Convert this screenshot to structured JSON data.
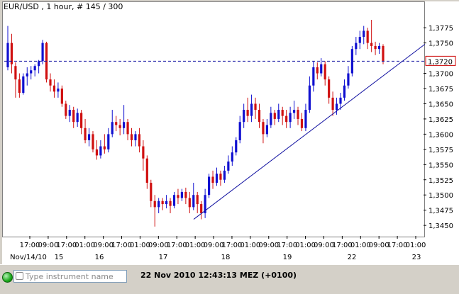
{
  "window": {
    "title": "EUR/USD , 1 hour, # 145 / 300"
  },
  "status_bar": {
    "instrument_placeholder": "Type instrument name",
    "timestamp": "22 Nov 2010 12:43:13 MEZ (+0100)",
    "connection_icon": "green-status-dot"
  },
  "colors": {
    "bull_candle": "#1010d0",
    "bear_candle": "#d01010",
    "trendline": "#1010a0",
    "price_line": "#1010a0",
    "price_label_border": "#cc0000"
  },
  "chart_data": {
    "type": "candlestick",
    "title": "EUR/USD , 1 hour, # 145 / 300",
    "current_price": 1.372,
    "current_price_label": "1,3720",
    "ylim": [
      1.3435,
      1.3795
    ],
    "y_ticks": [
      {
        "value": 1.3775,
        "label": "1,3775"
      },
      {
        "value": 1.375,
        "label": "1,3750"
      },
      {
        "value": 1.37,
        "label": "1,3700"
      },
      {
        "value": 1.3675,
        "label": "1,3675"
      },
      {
        "value": 1.365,
        "label": "1,3650"
      },
      {
        "value": 1.3625,
        "label": "1,3625"
      },
      {
        "value": 1.36,
        "label": "1,3600"
      },
      {
        "value": 1.3575,
        "label": "1,3575"
      },
      {
        "value": 1.355,
        "label": "1,3550"
      },
      {
        "value": 1.3525,
        "label": "1,3525"
      },
      {
        "value": 1.35,
        "label": "1,3500"
      },
      {
        "value": 1.3475,
        "label": "1,3475"
      },
      {
        "value": 1.345,
        "label": "1,3450"
      }
    ],
    "time_ticks": [
      "17:00",
      "09:00",
      "17:00",
      "01:00",
      "09:00",
      "17:00",
      "01:00",
      "09:00",
      "17:00",
      "01:00",
      "09:00",
      "17:00",
      "01:00",
      "09:00",
      "17:00",
      "01:00",
      "09:00",
      "17:00",
      "01:00",
      "09:00",
      "17:00",
      "01:00"
    ],
    "date_labels": [
      "Nov/14/10",
      "15",
      "16",
      "17",
      "18",
      "19",
      "22",
      "23"
    ],
    "grid": false,
    "trendline": {
      "start_value": 1.346,
      "end_value": 1.3748
    },
    "candles": [
      [
        1.371,
        1.375,
        1.3705,
        1.3778
      ],
      [
        1.375,
        1.3715,
        1.37,
        1.3765
      ],
      [
        1.3712,
        1.369,
        1.366,
        1.3718
      ],
      [
        1.369,
        1.3668,
        1.366,
        1.37
      ],
      [
        1.3668,
        1.3695,
        1.3665,
        1.37
      ],
      [
        1.3695,
        1.37,
        1.368,
        1.371
      ],
      [
        1.37,
        1.3705,
        1.369,
        1.3712
      ],
      [
        1.3705,
        1.3712,
        1.3695,
        1.3715
      ],
      [
        1.3712,
        1.372,
        1.37,
        1.3722
      ],
      [
        1.372,
        1.375,
        1.3715,
        1.3755
      ],
      [
        1.375,
        1.369,
        1.3685,
        1.3752
      ],
      [
        1.369,
        1.368,
        1.367,
        1.37
      ],
      [
        1.368,
        1.367,
        1.366,
        1.369
      ],
      [
        1.367,
        1.3675,
        1.366,
        1.3685
      ],
      [
        1.3675,
        1.365,
        1.3645,
        1.368
      ],
      [
        1.365,
        1.363,
        1.3625,
        1.3655
      ],
      [
        1.363,
        1.364,
        1.362,
        1.3648
      ],
      [
        1.364,
        1.362,
        1.361,
        1.3645
      ],
      [
        1.362,
        1.3635,
        1.3612,
        1.3642
      ],
      [
        1.3635,
        1.361,
        1.36,
        1.364
      ],
      [
        1.361,
        1.359,
        1.3585,
        1.3625
      ],
      [
        1.359,
        1.36,
        1.358,
        1.361
      ],
      [
        1.36,
        1.3575,
        1.357,
        1.3605
      ],
      [
        1.3575,
        1.3565,
        1.3558,
        1.359
      ],
      [
        1.3565,
        1.358,
        1.356,
        1.359
      ],
      [
        1.358,
        1.3575,
        1.3568,
        1.36
      ],
      [
        1.3575,
        1.36,
        1.357,
        1.361
      ],
      [
        1.36,
        1.362,
        1.3595,
        1.364
      ],
      [
        1.362,
        1.3615,
        1.3605,
        1.363
      ],
      [
        1.3615,
        1.361,
        1.3598,
        1.3625
      ],
      [
        1.361,
        1.362,
        1.36,
        1.3648
      ],
      [
        1.362,
        1.36,
        1.359,
        1.3625
      ],
      [
        1.36,
        1.359,
        1.358,
        1.361
      ],
      [
        1.359,
        1.36,
        1.358,
        1.3605
      ],
      [
        1.36,
        1.358,
        1.357,
        1.361
      ],
      [
        1.358,
        1.356,
        1.354,
        1.359
      ],
      [
        1.356,
        1.352,
        1.351,
        1.3565
      ],
      [
        1.352,
        1.349,
        1.348,
        1.3525
      ],
      [
        1.349,
        1.348,
        1.3448,
        1.35
      ],
      [
        1.348,
        1.349,
        1.347,
        1.3495
      ],
      [
        1.349,
        1.3485,
        1.3475,
        1.3495
      ],
      [
        1.3485,
        1.349,
        1.3478,
        1.35
      ],
      [
        1.349,
        1.3482,
        1.347,
        1.3495
      ],
      [
        1.3482,
        1.35,
        1.3478,
        1.3505
      ],
      [
        1.35,
        1.3495,
        1.3485,
        1.351
      ],
      [
        1.3495,
        1.3505,
        1.349,
        1.351
      ],
      [
        1.3505,
        1.3495,
        1.3485,
        1.3512
      ],
      [
        1.3495,
        1.348,
        1.347,
        1.3505
      ],
      [
        1.348,
        1.35,
        1.3475,
        1.352
      ],
      [
        1.35,
        1.3485,
        1.347,
        1.3505
      ],
      [
        1.3485,
        1.347,
        1.346,
        1.349
      ],
      [
        1.347,
        1.35,
        1.3462,
        1.351
      ],
      [
        1.35,
        1.353,
        1.3495,
        1.3535
      ],
      [
        1.353,
        1.352,
        1.351,
        1.354
      ],
      [
        1.352,
        1.3535,
        1.3515,
        1.3545
      ],
      [
        1.3535,
        1.3525,
        1.3515,
        1.354
      ],
      [
        1.3525,
        1.354,
        1.352,
        1.3548
      ],
      [
        1.354,
        1.3555,
        1.3535,
        1.3565
      ],
      [
        1.3555,
        1.357,
        1.3548,
        1.358
      ],
      [
        1.357,
        1.359,
        1.3565,
        1.3595
      ],
      [
        1.359,
        1.362,
        1.3585,
        1.363
      ],
      [
        1.362,
        1.364,
        1.361,
        1.365
      ],
      [
        1.364,
        1.363,
        1.362,
        1.366
      ],
      [
        1.363,
        1.365,
        1.362,
        1.3665
      ],
      [
        1.365,
        1.364,
        1.3625,
        1.366
      ],
      [
        1.364,
        1.362,
        1.361,
        1.365
      ],
      [
        1.362,
        1.36,
        1.3585,
        1.3625
      ],
      [
        1.36,
        1.3615,
        1.3595,
        1.3625
      ],
      [
        1.3615,
        1.3635,
        1.361,
        1.3645
      ],
      [
        1.3635,
        1.3625,
        1.3615,
        1.364
      ],
      [
        1.3625,
        1.364,
        1.362,
        1.365
      ],
      [
        1.364,
        1.363,
        1.3615,
        1.3645
      ],
      [
        1.363,
        1.362,
        1.361,
        1.364
      ],
      [
        1.362,
        1.3635,
        1.361,
        1.3645
      ],
      [
        1.3635,
        1.364,
        1.3625,
        1.3655
      ],
      [
        1.364,
        1.3625,
        1.3615,
        1.3645
      ],
      [
        1.3625,
        1.361,
        1.3605,
        1.3635
      ],
      [
        1.361,
        1.364,
        1.3605,
        1.365
      ],
      [
        1.364,
        1.368,
        1.3635,
        1.3695
      ],
      [
        1.368,
        1.371,
        1.367,
        1.372
      ],
      [
        1.371,
        1.37,
        1.369,
        1.3718
      ],
      [
        1.37,
        1.3715,
        1.3695,
        1.3725
      ],
      [
        1.3715,
        1.369,
        1.368,
        1.372
      ],
      [
        1.369,
        1.366,
        1.365,
        1.3695
      ],
      [
        1.366,
        1.364,
        1.363,
        1.367
      ],
      [
        1.364,
        1.365,
        1.3632,
        1.366
      ],
      [
        1.365,
        1.366,
        1.364,
        1.3668
      ],
      [
        1.366,
        1.368,
        1.3655,
        1.369
      ],
      [
        1.368,
        1.37,
        1.3675,
        1.3712
      ],
      [
        1.37,
        1.374,
        1.3695,
        1.3745
      ],
      [
        1.374,
        1.375,
        1.373,
        1.376
      ],
      [
        1.375,
        1.376,
        1.374,
        1.377
      ],
      [
        1.376,
        1.377,
        1.3748,
        1.3778
      ],
      [
        1.377,
        1.375,
        1.374,
        1.3775
      ],
      [
        1.375,
        1.3745,
        1.3735,
        1.3788
      ],
      [
        1.3745,
        1.374,
        1.373,
        1.3752
      ],
      [
        1.374,
        1.3745,
        1.3732,
        1.375
      ],
      [
        1.3745,
        1.372,
        1.3715,
        1.3748
      ]
    ]
  }
}
